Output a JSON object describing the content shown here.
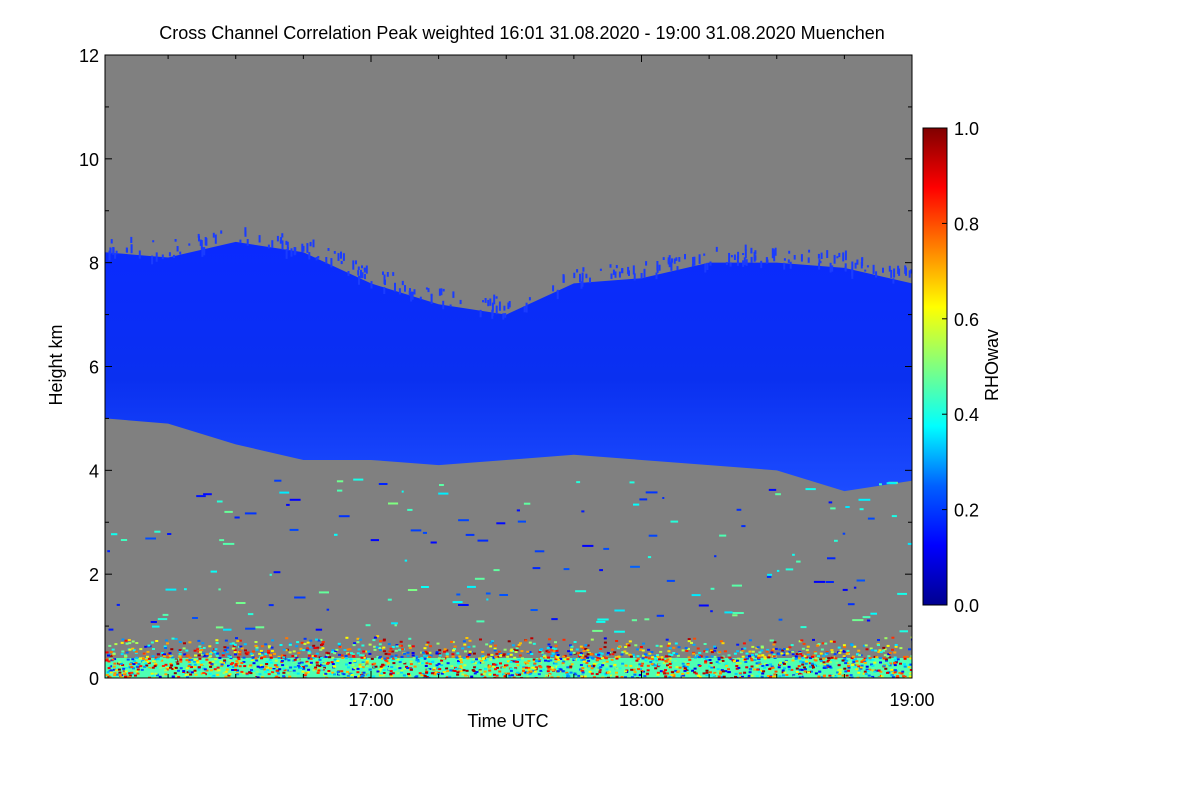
{
  "chart_data": {
    "type": "heatmap",
    "title": "Cross Channel Correlation Peak weighted   16:01 31.08.2020 - 19:00 31.08.2020 Muenchen",
    "xlabel": "Time UTC",
    "ylabel": "Height km",
    "colorbar_label": "RHOwav",
    "x_range_hours": [
      16.0167,
      19.0
    ],
    "y_range_km": [
      0,
      12
    ],
    "color_range": [
      0.0,
      1.0
    ],
    "x_ticks": [
      {
        "value": 17.0,
        "label": "17:00"
      },
      {
        "value": 18.0,
        "label": "18:00"
      },
      {
        "value": 19.0,
        "label": "19:00"
      }
    ],
    "y_ticks": [
      {
        "value": 0,
        "label": "0"
      },
      {
        "value": 2,
        "label": "2"
      },
      {
        "value": 4,
        "label": "4"
      },
      {
        "value": 6,
        "label": "6"
      },
      {
        "value": 8,
        "label": "8"
      },
      {
        "value": 10,
        "label": "10"
      },
      {
        "value": 12,
        "label": "12"
      }
    ],
    "colorbar_ticks": [
      {
        "value": 0.0,
        "label": "0.0"
      },
      {
        "value": 0.2,
        "label": "0.2"
      },
      {
        "value": 0.4,
        "label": "0.4"
      },
      {
        "value": 0.6,
        "label": "0.6"
      },
      {
        "value": 0.8,
        "label": "0.8"
      },
      {
        "value": 1.0,
        "label": "1.0"
      }
    ],
    "colormap": [
      "#00008f",
      "#0000ff",
      "#0080ff",
      "#00ffff",
      "#80ff80",
      "#ffff00",
      "#ff8000",
      "#ff0000",
      "#800000"
    ],
    "missing_color": "#808080",
    "cirrus_layer": {
      "typical_rho": 0.12,
      "x_hours": [
        16.0167,
        16.25,
        16.5,
        16.75,
        17.0,
        17.25,
        17.5,
        17.75,
        18.0,
        18.25,
        18.5,
        18.75,
        19.0
      ],
      "top_km": [
        8.2,
        8.1,
        8.4,
        8.2,
        7.6,
        7.2,
        7.0,
        7.6,
        7.7,
        8.0,
        8.0,
        7.9,
        7.6
      ],
      "base_km": [
        5.0,
        4.9,
        4.5,
        4.2,
        4.2,
        4.1,
        4.2,
        4.3,
        4.2,
        4.1,
        4.0,
        3.6,
        3.8
      ]
    },
    "boundary_layer": {
      "top_km": 0.7,
      "rho_range": [
        0.1,
        1.0
      ]
    }
  }
}
